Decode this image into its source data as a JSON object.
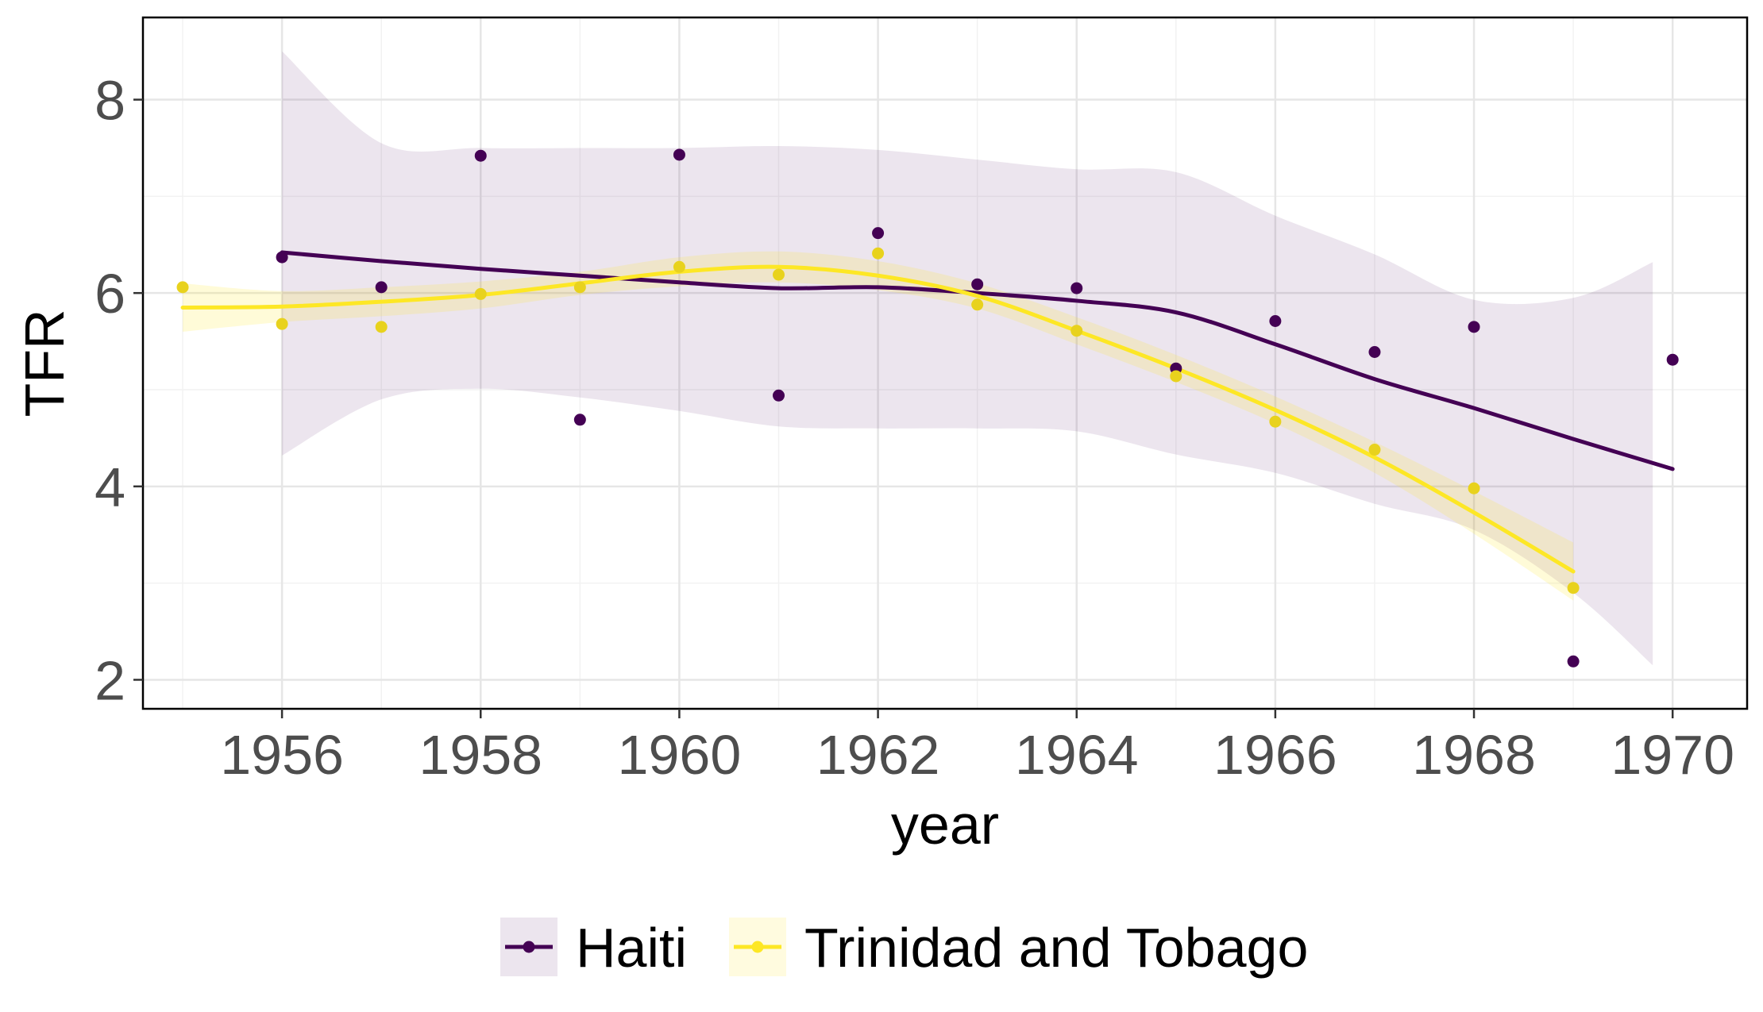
{
  "chart_data": {
    "type": "scatter",
    "xlabel": "year",
    "ylabel": "TFR",
    "xlim": [
      1954.6,
      1970.75
    ],
    "ylim": [
      1.7,
      8.85
    ],
    "x_ticks": [
      1956,
      1958,
      1960,
      1962,
      1964,
      1966,
      1968,
      1970
    ],
    "x_tick_labels": [
      "1956",
      "1958",
      "1960",
      "1962",
      "1964",
      "1966",
      "1968",
      "1970"
    ],
    "y_ticks": [
      2,
      4,
      6,
      8
    ],
    "y_tick_labels": [
      "2",
      "4",
      "6",
      "8"
    ],
    "grid": true,
    "legend_position": "bottom",
    "series": [
      {
        "name": "Haiti",
        "color": "#440154",
        "points": [
          {
            "x": 1956,
            "y": 6.37
          },
          {
            "x": 1957,
            "y": 6.06
          },
          {
            "x": 1958,
            "y": 7.42
          },
          {
            "x": 1959,
            "y": 4.69
          },
          {
            "x": 1960,
            "y": 7.43
          },
          {
            "x": 1961,
            "y": 4.94
          },
          {
            "x": 1962,
            "y": 6.62
          },
          {
            "x": 1963,
            "y": 6.09
          },
          {
            "x": 1964,
            "y": 6.05
          },
          {
            "x": 1965,
            "y": 5.22
          },
          {
            "x": 1966,
            "y": 5.71
          },
          {
            "x": 1967,
            "y": 5.39
          },
          {
            "x": 1968,
            "y": 5.65
          },
          {
            "x": 1969,
            "y": 2.19
          },
          {
            "x": 1970,
            "y": 5.31
          }
        ],
        "smooth": [
          {
            "x": 1956,
            "y": 6.42
          },
          {
            "x": 1957,
            "y": 6.33
          },
          {
            "x": 1958,
            "y": 6.25
          },
          {
            "x": 1959,
            "y": 6.18
          },
          {
            "x": 1960,
            "y": 6.11
          },
          {
            "x": 1961,
            "y": 6.05
          },
          {
            "x": 1962,
            "y": 6.06
          },
          {
            "x": 1963,
            "y": 6.0
          },
          {
            "x": 1964,
            "y": 5.92
          },
          {
            "x": 1965,
            "y": 5.8
          },
          {
            "x": 1966,
            "y": 5.47
          },
          {
            "x": 1967,
            "y": 5.11
          },
          {
            "x": 1968,
            "y": 4.81
          },
          {
            "x": 1969,
            "y": 4.49
          },
          {
            "x": 1970,
            "y": 4.18
          }
        ],
        "band_upper": [
          {
            "x": 1956,
            "y": 8.5
          },
          {
            "x": 1957,
            "y": 7.55
          },
          {
            "x": 1958,
            "y": 7.5
          },
          {
            "x": 1959,
            "y": 7.5
          },
          {
            "x": 1960,
            "y": 7.5
          },
          {
            "x": 1961,
            "y": 7.52
          },
          {
            "x": 1962,
            "y": 7.48
          },
          {
            "x": 1963,
            "y": 7.38
          },
          {
            "x": 1964,
            "y": 7.28
          },
          {
            "x": 1965,
            "y": 7.25
          },
          {
            "x": 1966,
            "y": 6.8
          },
          {
            "x": 1967,
            "y": 6.4
          },
          {
            "x": 1968,
            "y": 5.93
          },
          {
            "x": 1969,
            "y": 5.95
          },
          {
            "x": 1969.8,
            "y": 6.32
          }
        ],
        "band_lower": [
          {
            "x": 1956,
            "y": 4.32
          },
          {
            "x": 1957,
            "y": 4.9
          },
          {
            "x": 1958,
            "y": 5.01
          },
          {
            "x": 1959,
            "y": 4.92
          },
          {
            "x": 1960,
            "y": 4.78
          },
          {
            "x": 1961,
            "y": 4.62
          },
          {
            "x": 1962,
            "y": 4.6
          },
          {
            "x": 1963,
            "y": 4.6
          },
          {
            "x": 1964,
            "y": 4.57
          },
          {
            "x": 1965,
            "y": 4.33
          },
          {
            "x": 1966,
            "y": 4.14
          },
          {
            "x": 1967,
            "y": 3.82
          },
          {
            "x": 1968,
            "y": 3.55
          },
          {
            "x": 1969,
            "y": 2.9
          },
          {
            "x": 1969.8,
            "y": 2.15
          }
        ]
      },
      {
        "name": "Trinidad and Tobago",
        "color": "#fde725",
        "points": [
          {
            "x": 1955,
            "y": 6.06
          },
          {
            "x": 1956,
            "y": 5.68
          },
          {
            "x": 1957,
            "y": 5.65
          },
          {
            "x": 1958,
            "y": 5.99
          },
          {
            "x": 1959,
            "y": 6.06
          },
          {
            "x": 1960,
            "y": 6.27
          },
          {
            "x": 1961,
            "y": 6.19
          },
          {
            "x": 1962,
            "y": 6.41
          },
          {
            "x": 1963,
            "y": 5.88
          },
          {
            "x": 1964,
            "y": 5.61
          },
          {
            "x": 1965,
            "y": 5.14
          },
          {
            "x": 1966,
            "y": 4.67
          },
          {
            "x": 1967,
            "y": 4.38
          },
          {
            "x": 1968,
            "y": 3.98
          },
          {
            "x": 1969,
            "y": 2.95
          }
        ],
        "smooth": [
          {
            "x": 1955,
            "y": 5.85
          },
          {
            "x": 1956,
            "y": 5.86
          },
          {
            "x": 1957,
            "y": 5.91
          },
          {
            "x": 1958,
            "y": 5.98
          },
          {
            "x": 1959,
            "y": 6.1
          },
          {
            "x": 1960,
            "y": 6.22
          },
          {
            "x": 1961,
            "y": 6.27
          },
          {
            "x": 1962,
            "y": 6.18
          },
          {
            "x": 1963,
            "y": 5.97
          },
          {
            "x": 1964,
            "y": 5.61
          },
          {
            "x": 1965,
            "y": 5.22
          },
          {
            "x": 1966,
            "y": 4.79
          },
          {
            "x": 1967,
            "y": 4.3
          },
          {
            "x": 1968,
            "y": 3.73
          },
          {
            "x": 1969,
            "y": 3.12
          }
        ],
        "band_upper": [
          {
            "x": 1955,
            "y": 6.1
          },
          {
            "x": 1956,
            "y": 6.02
          },
          {
            "x": 1957,
            "y": 6.06
          },
          {
            "x": 1958,
            "y": 6.12
          },
          {
            "x": 1959,
            "y": 6.22
          },
          {
            "x": 1960,
            "y": 6.37
          },
          {
            "x": 1961,
            "y": 6.43
          },
          {
            "x": 1962,
            "y": 6.33
          },
          {
            "x": 1963,
            "y": 6.1
          },
          {
            "x": 1964,
            "y": 5.75
          },
          {
            "x": 1965,
            "y": 5.36
          },
          {
            "x": 1966,
            "y": 4.93
          },
          {
            "x": 1967,
            "y": 4.46
          },
          {
            "x": 1968,
            "y": 3.95
          },
          {
            "x": 1969,
            "y": 3.42
          }
        ],
        "band_lower": [
          {
            "x": 1955,
            "y": 5.6
          },
          {
            "x": 1956,
            "y": 5.7
          },
          {
            "x": 1957,
            "y": 5.76
          },
          {
            "x": 1958,
            "y": 5.84
          },
          {
            "x": 1959,
            "y": 5.98
          },
          {
            "x": 1960,
            "y": 6.07
          },
          {
            "x": 1961,
            "y": 6.11
          },
          {
            "x": 1962,
            "y": 6.03
          },
          {
            "x": 1963,
            "y": 5.84
          },
          {
            "x": 1964,
            "y": 5.47
          },
          {
            "x": 1965,
            "y": 5.08
          },
          {
            "x": 1966,
            "y": 4.65
          },
          {
            "x": 1967,
            "y": 4.14
          },
          {
            "x": 1968,
            "y": 3.51
          },
          {
            "x": 1969,
            "y": 2.82
          }
        ]
      }
    ]
  }
}
